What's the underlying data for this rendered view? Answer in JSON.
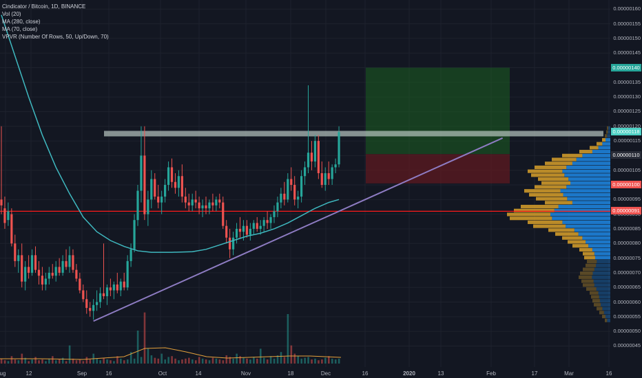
{
  "legend": {
    "title": "Cindicator / Bitcoin, 1D, BINANCE",
    "vol": "Vol (20)",
    "ma280": "MA (280, close)",
    "ma70": "MA (70, close)",
    "vpvr": "VPVR (Number Of Rows, 50, Up/Down, 70)"
  },
  "price_ticks": [
    "0.00000160",
    "0.00000155",
    "0.00000150",
    "0.00000145",
    "0.00000135",
    "0.00000130",
    "0.00000125",
    "0.00000120",
    "0.00000115",
    "0.00000105",
    "0.00000095",
    "0.00000090",
    "0.00000085",
    "0.00000080",
    "0.00000075",
    "0.00000070",
    "0.00000065",
    "0.00000060",
    "0.00000055",
    "0.00000050",
    "0.00000045"
  ],
  "price_tags": [
    {
      "value": "0.00000140",
      "color": "#26a69a"
    },
    {
      "value": "0.00000118",
      "color": "#4dd0c4"
    },
    {
      "value": "0.00000110",
      "color": "#2a2e39"
    },
    {
      "value": "0.00000100",
      "color": "#ef5350"
    },
    {
      "value": "0.00000091",
      "color": "#ef5350"
    }
  ],
  "time_ticks": [
    "ug",
    "12",
    "Sep",
    "16",
    "Oct",
    "14",
    "Nov",
    "18",
    "Dec",
    "16",
    "2020",
    "13",
    "Feb",
    "17",
    "Mar",
    "16"
  ],
  "colors": {
    "up": "#26a69a",
    "down": "#ef5350",
    "ma70": "#3fb9c0",
    "ma280": "#e6a23c",
    "trendline": "#8e7cc3",
    "resistance": "#b8c6c0",
    "support": "#ff1a1a",
    "target_zone": "#1b5e20",
    "stop_zone": "#5d1a20",
    "vpvr_up": "#1e88e5",
    "vpvr_down": "#d8a02a"
  },
  "chart_data": {
    "type": "candlestick",
    "ylim": [
      4.3e-07,
      1.61e-06
    ],
    "candles": [
      {
        "x": 0,
        "o": 9.5e-07,
        "h": 1.2e-06,
        "l": 9e-07,
        "c": 9.3e-07
      },
      {
        "x": 5,
        "o": 9.2e-07,
        "h": 9.6e-07,
        "l": 8.5e-07,
        "c": 8.7e-07
      },
      {
        "x": 10,
        "o": 8.8e-07,
        "h": 9.4e-07,
        "l": 8.6e-07,
        "c": 9.1e-07
      },
      {
        "x": 15,
        "o": 9e-07,
        "h": 9.2e-07,
        "l": 7.9e-07,
        "c": 8e-07
      },
      {
        "x": 20,
        "o": 8e-07,
        "h": 8.3e-07,
        "l": 7.2e-07,
        "c": 7.4e-07
      },
      {
        "x": 25,
        "o": 7.4e-07,
        "h": 7.8e-07,
        "l": 7e-07,
        "c": 7.6e-07
      },
      {
        "x": 30,
        "o": 7.6e-07,
        "h": 8e-07,
        "l": 6.5e-07,
        "c": 6.7e-07
      },
      {
        "x": 35,
        "o": 6.7e-07,
        "h": 7.4e-07,
        "l": 6.4e-07,
        "c": 7.2e-07
      },
      {
        "x": 40,
        "o": 7.2e-07,
        "h": 7.6e-07,
        "l": 6.8e-07,
        "c": 7e-07
      },
      {
        "x": 45,
        "o": 7e-07,
        "h": 7.8e-07,
        "l": 6.9e-07,
        "c": 7.6e-07
      },
      {
        "x": 50,
        "o": 7.6e-07,
        "h": 7.9e-07,
        "l": 7e-07,
        "c": 7.1e-07
      },
      {
        "x": 55,
        "o": 7.1e-07,
        "h": 7.4e-07,
        "l": 6.6e-07,
        "c": 6.9e-07
      },
      {
        "x": 60,
        "o": 6.9e-07,
        "h": 7.2e-07,
        "l": 6.4e-07,
        "c": 6.6e-07
      },
      {
        "x": 65,
        "o": 6.6e-07,
        "h": 7e-07,
        "l": 6.4e-07,
        "c": 6.8e-07
      },
      {
        "x": 70,
        "o": 6.8e-07,
        "h": 7.2e-07,
        "l": 6.6e-07,
        "c": 7e-07
      },
      {
        "x": 75,
        "o": 7e-07,
        "h": 7.3e-07,
        "l": 6.8e-07,
        "c": 6.9e-07
      },
      {
        "x": 80,
        "o": 6.9e-07,
        "h": 7.4e-07,
        "l": 6.7e-07,
        "c": 7.2e-07
      },
      {
        "x": 85,
        "o": 7.2e-07,
        "h": 7.5e-07,
        "l": 6.9e-07,
        "c": 7e-07
      },
      {
        "x": 90,
        "o": 7e-07,
        "h": 7.6e-07,
        "l": 6.9e-07,
        "c": 7.4e-07
      },
      {
        "x": 95,
        "o": 7.4e-07,
        "h": 7.8e-07,
        "l": 7.1e-07,
        "c": 7.2e-07
      },
      {
        "x": 100,
        "o": 7.2e-07,
        "h": 7.9e-07,
        "l": 7e-07,
        "c": 7.6e-07
      },
      {
        "x": 105,
        "o": 7.6e-07,
        "h": 7.8e-07,
        "l": 7e-07,
        "c": 7.1e-07
      },
      {
        "x": 110,
        "o": 7.1e-07,
        "h": 7.3e-07,
        "l": 6.7e-07,
        "c": 6.8e-07
      },
      {
        "x": 115,
        "o": 6.8e-07,
        "h": 7e-07,
        "l": 6.3e-07,
        "c": 6.4e-07
      },
      {
        "x": 120,
        "o": 6.4e-07,
        "h": 6.6e-07,
        "l": 6e-07,
        "c": 6.1e-07
      },
      {
        "x": 125,
        "o": 6.1e-07,
        "h": 6.4e-07,
        "l": 5.6e-07,
        "c": 5.8e-07
      },
      {
        "x": 130,
        "o": 5.8e-07,
        "h": 6e-07,
        "l": 5.5e-07,
        "c": 5.7e-07
      },
      {
        "x": 135,
        "o": 5.7e-07,
        "h": 6.1e-07,
        "l": 5.4e-07,
        "c": 5.9e-07
      },
      {
        "x": 140,
        "o": 5.9e-07,
        "h": 6.4e-07,
        "l": 5.7e-07,
        "c": 6e-07
      },
      {
        "x": 145,
        "o": 6e-07,
        "h": 6.5e-07,
        "l": 5.8e-07,
        "c": 6.3e-07
      },
      {
        "x": 150,
        "o": 6.3e-07,
        "h": 8e-07,
        "l": 6.1e-07,
        "c": 6.2e-07
      },
      {
        "x": 155,
        "o": 6.2e-07,
        "h": 6.6e-07,
        "l": 5.9e-07,
        "c": 6.5e-07
      },
      {
        "x": 160,
        "o": 6.5e-07,
        "h": 6.8e-07,
        "l": 6.2e-07,
        "c": 6.4e-07
      },
      {
        "x": 165,
        "o": 6.4e-07,
        "h": 6.7e-07,
        "l": 6.1e-07,
        "c": 6.6e-07
      },
      {
        "x": 170,
        "o": 6.6e-07,
        "h": 7e-07,
        "l": 6.3e-07,
        "c": 6.4e-07
      },
      {
        "x": 175,
        "o": 6.4e-07,
        "h": 6.8e-07,
        "l": 6.2e-07,
        "c": 6.7e-07
      },
      {
        "x": 180,
        "o": 6.7e-07,
        "h": 7e-07,
        "l": 6.4e-07,
        "c": 6.5e-07
      },
      {
        "x": 185,
        "o": 6.5e-07,
        "h": 7.6e-07,
        "l": 6.4e-07,
        "c": 7.4e-07
      },
      {
        "x": 190,
        "o": 7.4e-07,
        "h": 8e-07,
        "l": 7.2e-07,
        "c": 7.8e-07
      },
      {
        "x": 195,
        "o": 7.8e-07,
        "h": 9e-07,
        "l": 7.7e-07,
        "c": 8.8e-07
      },
      {
        "x": 200,
        "o": 8.8e-07,
        "h": 1e-06,
        "l": 8.6e-07,
        "c": 9.8e-07
      },
      {
        "x": 205,
        "o": 9.8e-07,
        "h": 1.2e-06,
        "l": 9.4e-07,
        "c": 1.1e-06
      },
      {
        "x": 210,
        "o": 1.1e-06,
        "h": 1.2e-06,
        "l": 8.8e-07,
        "c": 9e-07
      },
      {
        "x": 215,
        "o": 9e-07,
        "h": 9.8e-07,
        "l": 8.6e-07,
        "c": 9.5e-07
      },
      {
        "x": 220,
        "o": 9.5e-07,
        "h": 1.05e-06,
        "l": 9.2e-07,
        "c": 1.02e-06
      },
      {
        "x": 225,
        "o": 1.02e-06,
        "h": 1.04e-06,
        "l": 9.5e-07,
        "c": 9.6e-07
      },
      {
        "x": 230,
        "o": 9.6e-07,
        "h": 1e-06,
        "l": 9.2e-07,
        "c": 9.4e-07
      },
      {
        "x": 235,
        "o": 9.4e-07,
        "h": 9.8e-07,
        "l": 9e-07,
        "c": 9.6e-07
      },
      {
        "x": 240,
        "o": 9.6e-07,
        "h": 1.02e-06,
        "l": 9.4e-07,
        "c": 1e-06
      },
      {
        "x": 245,
        "o": 1e-06,
        "h": 1.08e-06,
        "l": 9.8e-07,
        "c": 1.06e-06
      },
      {
        "x": 250,
        "o": 1.06e-06,
        "h": 1.09e-06,
        "l": 9.9e-07,
        "c": 1.01e-06
      },
      {
        "x": 255,
        "o": 1.01e-06,
        "h": 1.04e-06,
        "l": 9.7e-07,
        "c": 9.9e-07
      },
      {
        "x": 260,
        "o": 9.9e-07,
        "h": 1.05e-06,
        "l": 9.6e-07,
        "c": 1.03e-06
      },
      {
        "x": 265,
        "o": 1.03e-06,
        "h": 1.07e-06,
        "l": 9.4e-07,
        "c": 9.6e-07
      },
      {
        "x": 270,
        "o": 9.6e-07,
        "h": 9.9e-07,
        "l": 9.2e-07,
        "c": 9.4e-07
      },
      {
        "x": 275,
        "o": 9.4e-07,
        "h": 9.7e-07,
        "l": 9.1e-07,
        "c": 9.3e-07
      },
      {
        "x": 280,
        "o": 9.3e-07,
        "h": 9.7e-07,
        "l": 9.1e-07,
        "c": 9.5e-07
      },
      {
        "x": 285,
        "o": 9.5e-07,
        "h": 9.8e-07,
        "l": 9.2e-07,
        "c": 9.4e-07
      },
      {
        "x": 290,
        "o": 9.4e-07,
        "h": 9.6e-07,
        "l": 9e-07,
        "c": 9.2e-07
      },
      {
        "x": 295,
        "o": 9.2e-07,
        "h": 9.5e-07,
        "l": 8.9e-07,
        "c": 9.3e-07
      },
      {
        "x": 300,
        "o": 9.3e-07,
        "h": 9.6e-07,
        "l": 9e-07,
        "c": 9.2e-07
      },
      {
        "x": 305,
        "o": 9.2e-07,
        "h": 9.5e-07,
        "l": 9e-07,
        "c": 9.4e-07
      },
      {
        "x": 310,
        "o": 9.4e-07,
        "h": 9.7e-07,
        "l": 9.1e-07,
        "c": 9.3e-07
      },
      {
        "x": 315,
        "o": 9.3e-07,
        "h": 9.6e-07,
        "l": 9.1e-07,
        "c": 9.5e-07
      },
      {
        "x": 320,
        "o": 9.5e-07,
        "h": 9.7e-07,
        "l": 9.2e-07,
        "c": 9.4e-07
      },
      {
        "x": 325,
        "o": 9.4e-07,
        "h": 9.6e-07,
        "l": 8.5e-07,
        "c": 8.6e-07
      },
      {
        "x": 330,
        "o": 8.6e-07,
        "h": 8.8e-07,
        "l": 8e-07,
        "c": 8.2e-07
      },
      {
        "x": 335,
        "o": 8.2e-07,
        "h": 8.5e-07,
        "l": 7.5e-07,
        "c": 7.8e-07
      },
      {
        "x": 340,
        "o": 7.8e-07,
        "h": 8.4e-07,
        "l": 7.6e-07,
        "c": 8.2e-07
      },
      {
        "x": 345,
        "o": 8.2e-07,
        "h": 8.7e-07,
        "l": 8e-07,
        "c": 8.5e-07
      },
      {
        "x": 350,
        "o": 8.5e-07,
        "h": 8.9e-07,
        "l": 8.2e-07,
        "c": 8.4e-07
      },
      {
        "x": 355,
        "o": 8.4e-07,
        "h": 8.8e-07,
        "l": 8.1e-07,
        "c": 8.6e-07
      },
      {
        "x": 360,
        "o": 8.6e-07,
        "h": 8.8e-07,
        "l": 8.2e-07,
        "c": 8.3e-07
      },
      {
        "x": 365,
        "o": 8.3e-07,
        "h": 8.7e-07,
        "l": 8.1e-07,
        "c": 8.5e-07
      },
      {
        "x": 370,
        "o": 8.5e-07,
        "h": 8.8e-07,
        "l": 8.3e-07,
        "c": 8.7e-07
      },
      {
        "x": 375,
        "o": 8.7e-07,
        "h": 8.9e-07,
        "l": 8.4e-07,
        "c": 8.5e-07
      },
      {
        "x": 380,
        "o": 8.5e-07,
        "h": 8.8e-07,
        "l": 8.3e-07,
        "c": 8.6e-07
      },
      {
        "x": 385,
        "o": 8.6e-07,
        "h": 8.9e-07,
        "l": 8.4e-07,
        "c": 8.8e-07
      },
      {
        "x": 390,
        "o": 8.8e-07,
        "h": 9.1e-07,
        "l": 8.5e-07,
        "c": 8.7e-07
      },
      {
        "x": 395,
        "o": 8.7e-07,
        "h": 9e-07,
        "l": 8.5e-07,
        "c": 8.9e-07
      },
      {
        "x": 400,
        "o": 8.9e-07,
        "h": 9.3e-07,
        "l": 8.7e-07,
        "c": 9.1e-07
      },
      {
        "x": 405,
        "o": 9.1e-07,
        "h": 9.6e-07,
        "l": 8.9e-07,
        "c": 9.4e-07
      },
      {
        "x": 410,
        "o": 9.4e-07,
        "h": 9.9e-07,
        "l": 9.2e-07,
        "c": 9.7e-07
      },
      {
        "x": 415,
        "o": 9.7e-07,
        "h": 1.01e-06,
        "l": 9.3e-07,
        "c": 9.5e-07
      },
      {
        "x": 420,
        "o": 9.5e-07,
        "h": 1.04e-06,
        "l": 9.4e-07,
        "c": 1.02e-06
      },
      {
        "x": 425,
        "o": 1.02e-06,
        "h": 1.06e-06,
        "l": 9.8e-07,
        "c": 1e-06
      },
      {
        "x": 430,
        "o": 1e-06,
        "h": 1.03e-06,
        "l": 9.3e-07,
        "c": 9.5e-07
      },
      {
        "x": 435,
        "o": 9.5e-07,
        "h": 9.8e-07,
        "l": 9.2e-07,
        "c": 9.6e-07
      },
      {
        "x": 440,
        "o": 9.6e-07,
        "h": 1.05e-06,
        "l": 9.4e-07,
        "c": 1.03e-06
      },
      {
        "x": 445,
        "o": 1.03e-06,
        "h": 1.08e-06,
        "l": 1e-06,
        "c": 1.06e-06
      },
      {
        "x": 450,
        "o": 1.06e-06,
        "h": 1.34e-06,
        "l": 1.04e-06,
        "c": 1.11e-06
      },
      {
        "x": 455,
        "o": 1.11e-06,
        "h": 1.15e-06,
        "l": 1.05e-06,
        "c": 1.08e-06
      },
      {
        "x": 460,
        "o": 1.08e-06,
        "h": 1.17e-06,
        "l": 1.06e-06,
        "c": 1.15e-06
      },
      {
        "x": 465,
        "o": 1.15e-06,
        "h": 1.17e-06,
        "l": 1.02e-06,
        "c": 1.04e-06
      },
      {
        "x": 470,
        "o": 1.04e-06,
        "h": 1.08e-06,
        "l": 9.9e-07,
        "c": 1e-06
      },
      {
        "x": 475,
        "o": 1e-06,
        "h": 1.06e-06,
        "l": 9.8e-07,
        "c": 1.04e-06
      },
      {
        "x": 480,
        "o": 1.04e-06,
        "h": 1.08e-06,
        "l": 1e-06,
        "c": 1.02e-06
      },
      {
        "x": 485,
        "o": 1.02e-06,
        "h": 1.07e-06,
        "l": 1e-06,
        "c": 1.06e-06
      },
      {
        "x": 490,
        "o": 1.06e-06,
        "h": 1.09e-06,
        "l": 1.04e-06,
        "c": 1.07e-06
      },
      {
        "x": 495,
        "o": 1.07e-06,
        "h": 1.2e-06,
        "l": 1.06e-06,
        "c": 1.18e-06
      }
    ],
    "ma70": [
      [
        0,
        1.58e-06
      ],
      [
        20,
        1.44e-06
      ],
      [
        40,
        1.3e-06
      ],
      [
        60,
        1.17e-06
      ],
      [
        80,
        1.06e-06
      ],
      [
        100,
        9.7e-07
      ],
      [
        120,
        8.9e-07
      ],
      [
        140,
        8.4e-07
      ],
      [
        160,
        8.1e-07
      ],
      [
        180,
        7.9e-07
      ],
      [
        200,
        7.75e-07
      ],
      [
        220,
        7.7e-07
      ],
      [
        250,
        7.7e-07
      ],
      [
        280,
        7.72e-07
      ],
      [
        300,
        7.8e-07
      ],
      [
        320,
        7.95e-07
      ],
      [
        340,
        8.1e-07
      ],
      [
        360,
        8.25e-07
      ],
      [
        380,
        8.35e-07
      ],
      [
        400,
        8.5e-07
      ],
      [
        420,
        8.7e-07
      ],
      [
        440,
        8.95e-07
      ],
      [
        460,
        9.2e-07
      ],
      [
        480,
        9.4e-07
      ],
      [
        495,
        9.5e-07
      ]
    ],
    "lines": {
      "resistance": 1.175e-06,
      "support": 9.1e-07,
      "trendline": [
        [
          135,
          5.35e-07
        ],
        [
          735,
          1.16e-06
        ]
      ],
      "target_zone": [
        1.105e-06,
        1.4e-06
      ],
      "stop_zone": [
        1.005e-06,
        1.105e-06
      ]
    }
  }
}
